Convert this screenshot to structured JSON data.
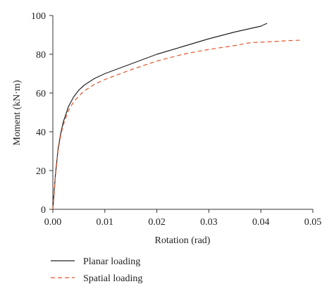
{
  "chart_data": {
    "type": "line",
    "title": "",
    "xlabel": "Rotation (rad)",
    "ylabel": "Moment (kN·m)",
    "xlim": [
      0,
      0.05
    ],
    "ylim": [
      0,
      100
    ],
    "xticks": [
      "0.00",
      "0.01",
      "0.02",
      "0.03",
      "0.04",
      "0.05"
    ],
    "yticks": [
      "0",
      "20",
      "40",
      "60",
      "80",
      "100"
    ],
    "grid": false,
    "legend_placement": "bottom-left",
    "series": [
      {
        "name": "Planar loading",
        "color": "#222222",
        "style": "solid",
        "points": [
          [
            0,
            0
          ],
          [
            0.0005,
            18
          ],
          [
            0.001,
            31
          ],
          [
            0.0015,
            39
          ],
          [
            0.002,
            45
          ],
          [
            0.003,
            53
          ],
          [
            0.004,
            58
          ],
          [
            0.005,
            61.5
          ],
          [
            0.006,
            64
          ],
          [
            0.008,
            67.5
          ],
          [
            0.01,
            70
          ],
          [
            0.012,
            72
          ],
          [
            0.015,
            75
          ],
          [
            0.02,
            80
          ],
          [
            0.025,
            84
          ],
          [
            0.03,
            88
          ],
          [
            0.035,
            91.5
          ],
          [
            0.04,
            94.5
          ],
          [
            0.0412,
            96
          ]
        ]
      },
      {
        "name": "Spatial loading",
        "color": "#e4552d",
        "style": "dashed",
        "points": [
          [
            0,
            0
          ],
          [
            0.0005,
            17
          ],
          [
            0.001,
            30
          ],
          [
            0.0015,
            38
          ],
          [
            0.002,
            43.5
          ],
          [
            0.003,
            51
          ],
          [
            0.004,
            55.5
          ],
          [
            0.005,
            58.5
          ],
          [
            0.006,
            61
          ],
          [
            0.008,
            64.5
          ],
          [
            0.01,
            67
          ],
          [
            0.012,
            69
          ],
          [
            0.015,
            72
          ],
          [
            0.02,
            76.5
          ],
          [
            0.025,
            80
          ],
          [
            0.03,
            82.5
          ],
          [
            0.035,
            84.5
          ],
          [
            0.038,
            86
          ],
          [
            0.042,
            86.5
          ],
          [
            0.045,
            87
          ],
          [
            0.048,
            87.3
          ]
        ]
      }
    ]
  }
}
